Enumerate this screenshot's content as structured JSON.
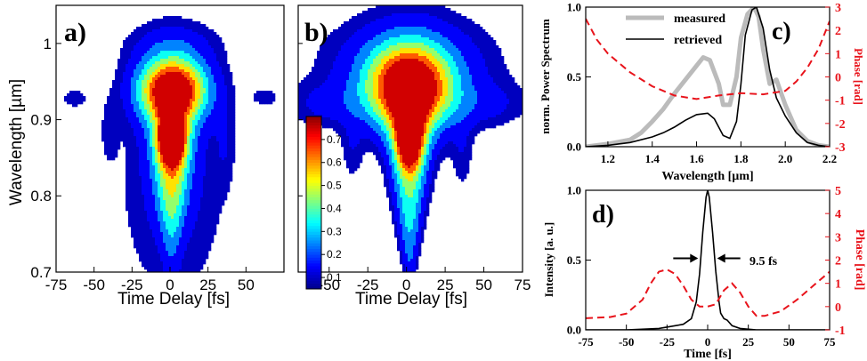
{
  "chart_data": [
    {
      "id": "a",
      "type": "heatmap",
      "panel_label": "a)",
      "xlabel": "Time Delay [fs]",
      "ylabel": "Wavelength [µm]",
      "xlim": [
        -75,
        75
      ],
      "ylim": [
        0.7,
        1.05
      ],
      "xticks": [
        -75,
        -50,
        -25,
        0,
        25,
        50
      ],
      "yticks": [
        0.7,
        0.8,
        0.9,
        1
      ],
      "ytick_labels": [
        "0.7",
        "0.8",
        "0.9",
        "1"
      ],
      "contour_levels": [
        0.05,
        0.1,
        0.2,
        0.3,
        0.4,
        0.5,
        0.6,
        0.7
      ],
      "colormap": [
        "#00008f",
        "#0000ff",
        "#0080ff",
        "#00ffff",
        "#80ff80",
        "#ffff00",
        "#ff8000",
        "#ff0000",
        "#800000"
      ]
    },
    {
      "id": "b",
      "type": "heatmap",
      "panel_label": "b)",
      "xlabel": "Time Delay [fs]",
      "xlim": [
        -70,
        75
      ],
      "ylim": [
        0.7,
        1.05
      ],
      "xticks": [
        -50,
        -25,
        0,
        25,
        50,
        75
      ],
      "colorbar": {
        "ticks": [
          0.1,
          0.2,
          0.3,
          0.4,
          0.5,
          0.6,
          0.7
        ],
        "tick_labels": [
          "0.1",
          "0.2",
          "0.3",
          "0.4",
          "0.5",
          "0.6",
          "0.7"
        ],
        "range": [
          0.05,
          0.8
        ]
      }
    },
    {
      "id": "c",
      "type": "line",
      "panel_label": "c)",
      "xlabel": "Wavelength [µm]",
      "ylabel": "norm. Power Spectrum",
      "y2label": "Phase [rad]",
      "xlim": [
        1.1,
        2.2
      ],
      "ylim": [
        0,
        1.0
      ],
      "y2lim": [
        -3,
        3
      ],
      "xticks": [
        1.2,
        1.4,
        1.6,
        1.8,
        2.0,
        2.2
      ],
      "xtick_labels": [
        "1.2",
        "1.4",
        "1.6",
        "1.8",
        "2.0",
        "2.2"
      ],
      "yticks": [
        0,
        0.5,
        1.0
      ],
      "ytick_labels": [
        "0.0",
        "0.5",
        "1.0"
      ],
      "y2ticks": [
        -3,
        -2,
        -1,
        0,
        1,
        2,
        3
      ],
      "legend": {
        "position": "top-left",
        "entries": [
          "measured",
          "retrieved"
        ]
      },
      "series": [
        {
          "name": "measured",
          "color": "#bbbbbb",
          "x": [
            1.1,
            1.2,
            1.3,
            1.35,
            1.4,
            1.45,
            1.5,
            1.55,
            1.6,
            1.63,
            1.66,
            1.7,
            1.72,
            1.75,
            1.78,
            1.8,
            1.83,
            1.86,
            1.88,
            1.9,
            1.93,
            1.96,
            2.0,
            2.05,
            2.1,
            2.15,
            2.2
          ],
          "y": [
            0.0,
            0.02,
            0.05,
            0.1,
            0.18,
            0.27,
            0.38,
            0.48,
            0.58,
            0.64,
            0.62,
            0.45,
            0.3,
            0.3,
            0.5,
            0.78,
            0.95,
            1.0,
            0.93,
            0.7,
            0.45,
            0.48,
            0.3,
            0.12,
            0.04,
            0.01,
            0.0
          ]
        },
        {
          "name": "retrieved",
          "color": "#000000",
          "x": [
            1.1,
            1.2,
            1.3,
            1.4,
            1.45,
            1.5,
            1.55,
            1.6,
            1.65,
            1.68,
            1.72,
            1.75,
            1.78,
            1.8,
            1.82,
            1.85,
            1.87,
            1.9,
            1.93,
            1.96,
            2.0,
            2.05,
            2.1,
            2.15,
            2.2
          ],
          "y": [
            0.0,
            0.01,
            0.03,
            0.07,
            0.1,
            0.14,
            0.19,
            0.23,
            0.24,
            0.2,
            0.08,
            0.06,
            0.18,
            0.45,
            0.8,
            0.98,
            1.0,
            0.85,
            0.55,
            0.35,
            0.22,
            0.1,
            0.03,
            0.01,
            0.0
          ]
        },
        {
          "name": "phase",
          "axis": "y2",
          "color": "#e8131b",
          "dashed": true,
          "x": [
            1.1,
            1.15,
            1.2,
            1.3,
            1.4,
            1.5,
            1.6,
            1.7,
            1.8,
            1.9,
            2.0,
            2.05,
            2.1,
            2.15,
            2.2
          ],
          "y": [
            2.5,
            1.6,
            1.0,
            0.2,
            -0.4,
            -0.8,
            -0.95,
            -0.8,
            -0.7,
            -0.75,
            -0.6,
            -0.2,
            0.4,
            1.2,
            2.4
          ]
        }
      ]
    },
    {
      "id": "d",
      "type": "line",
      "panel_label": "d)",
      "xlabel": "Time [fs]",
      "ylabel": "Intensity [a. u.]",
      "y2label": "Phase [rad]",
      "xlim": [
        -75,
        75
      ],
      "ylim": [
        0,
        1.0
      ],
      "y2lim": [
        -1,
        5
      ],
      "xticks": [
        -75,
        -50,
        -25,
        0,
        25,
        50,
        75
      ],
      "yticks": [
        0,
        0.5,
        1.0
      ],
      "ytick_labels": [
        "0.0",
        "0.5",
        "1.0"
      ],
      "y2ticks": [
        -1,
        0,
        1,
        2,
        3,
        4,
        5
      ],
      "annotation": {
        "text": "9.5 fs",
        "fwhm": 9.5,
        "y": 0.5
      },
      "series": [
        {
          "name": "intensity",
          "color": "#000000",
          "x": [
            -75,
            -50,
            -30,
            -20,
            -15,
            -10,
            -7,
            -5,
            -3,
            -1,
            0,
            1,
            3,
            5,
            7,
            8,
            10,
            12,
            15,
            20,
            30,
            75
          ],
          "y": [
            0,
            0,
            0.01,
            0.03,
            0.04,
            0.08,
            0.2,
            0.4,
            0.7,
            0.95,
            1.0,
            0.95,
            0.7,
            0.42,
            0.2,
            0.12,
            0.08,
            0.07,
            0.03,
            0.01,
            0,
            0
          ]
        },
        {
          "name": "phase",
          "axis": "y2",
          "color": "#e8131b",
          "dashed": true,
          "x": [
            -75,
            -60,
            -50,
            -40,
            -35,
            -30,
            -25,
            -20,
            -15,
            -10,
            -5,
            0,
            5,
            10,
            15,
            20,
            25,
            30,
            35,
            45,
            55,
            65,
            75
          ],
          "y": [
            -0.5,
            -0.45,
            -0.3,
            0.3,
            1.0,
            1.5,
            1.6,
            1.4,
            0.9,
            0.3,
            0.0,
            0.0,
            0.1,
            0.7,
            1.0,
            0.6,
            0.0,
            -0.4,
            -0.4,
            -0.2,
            0.3,
            0.9,
            1.5
          ]
        }
      ]
    }
  ]
}
